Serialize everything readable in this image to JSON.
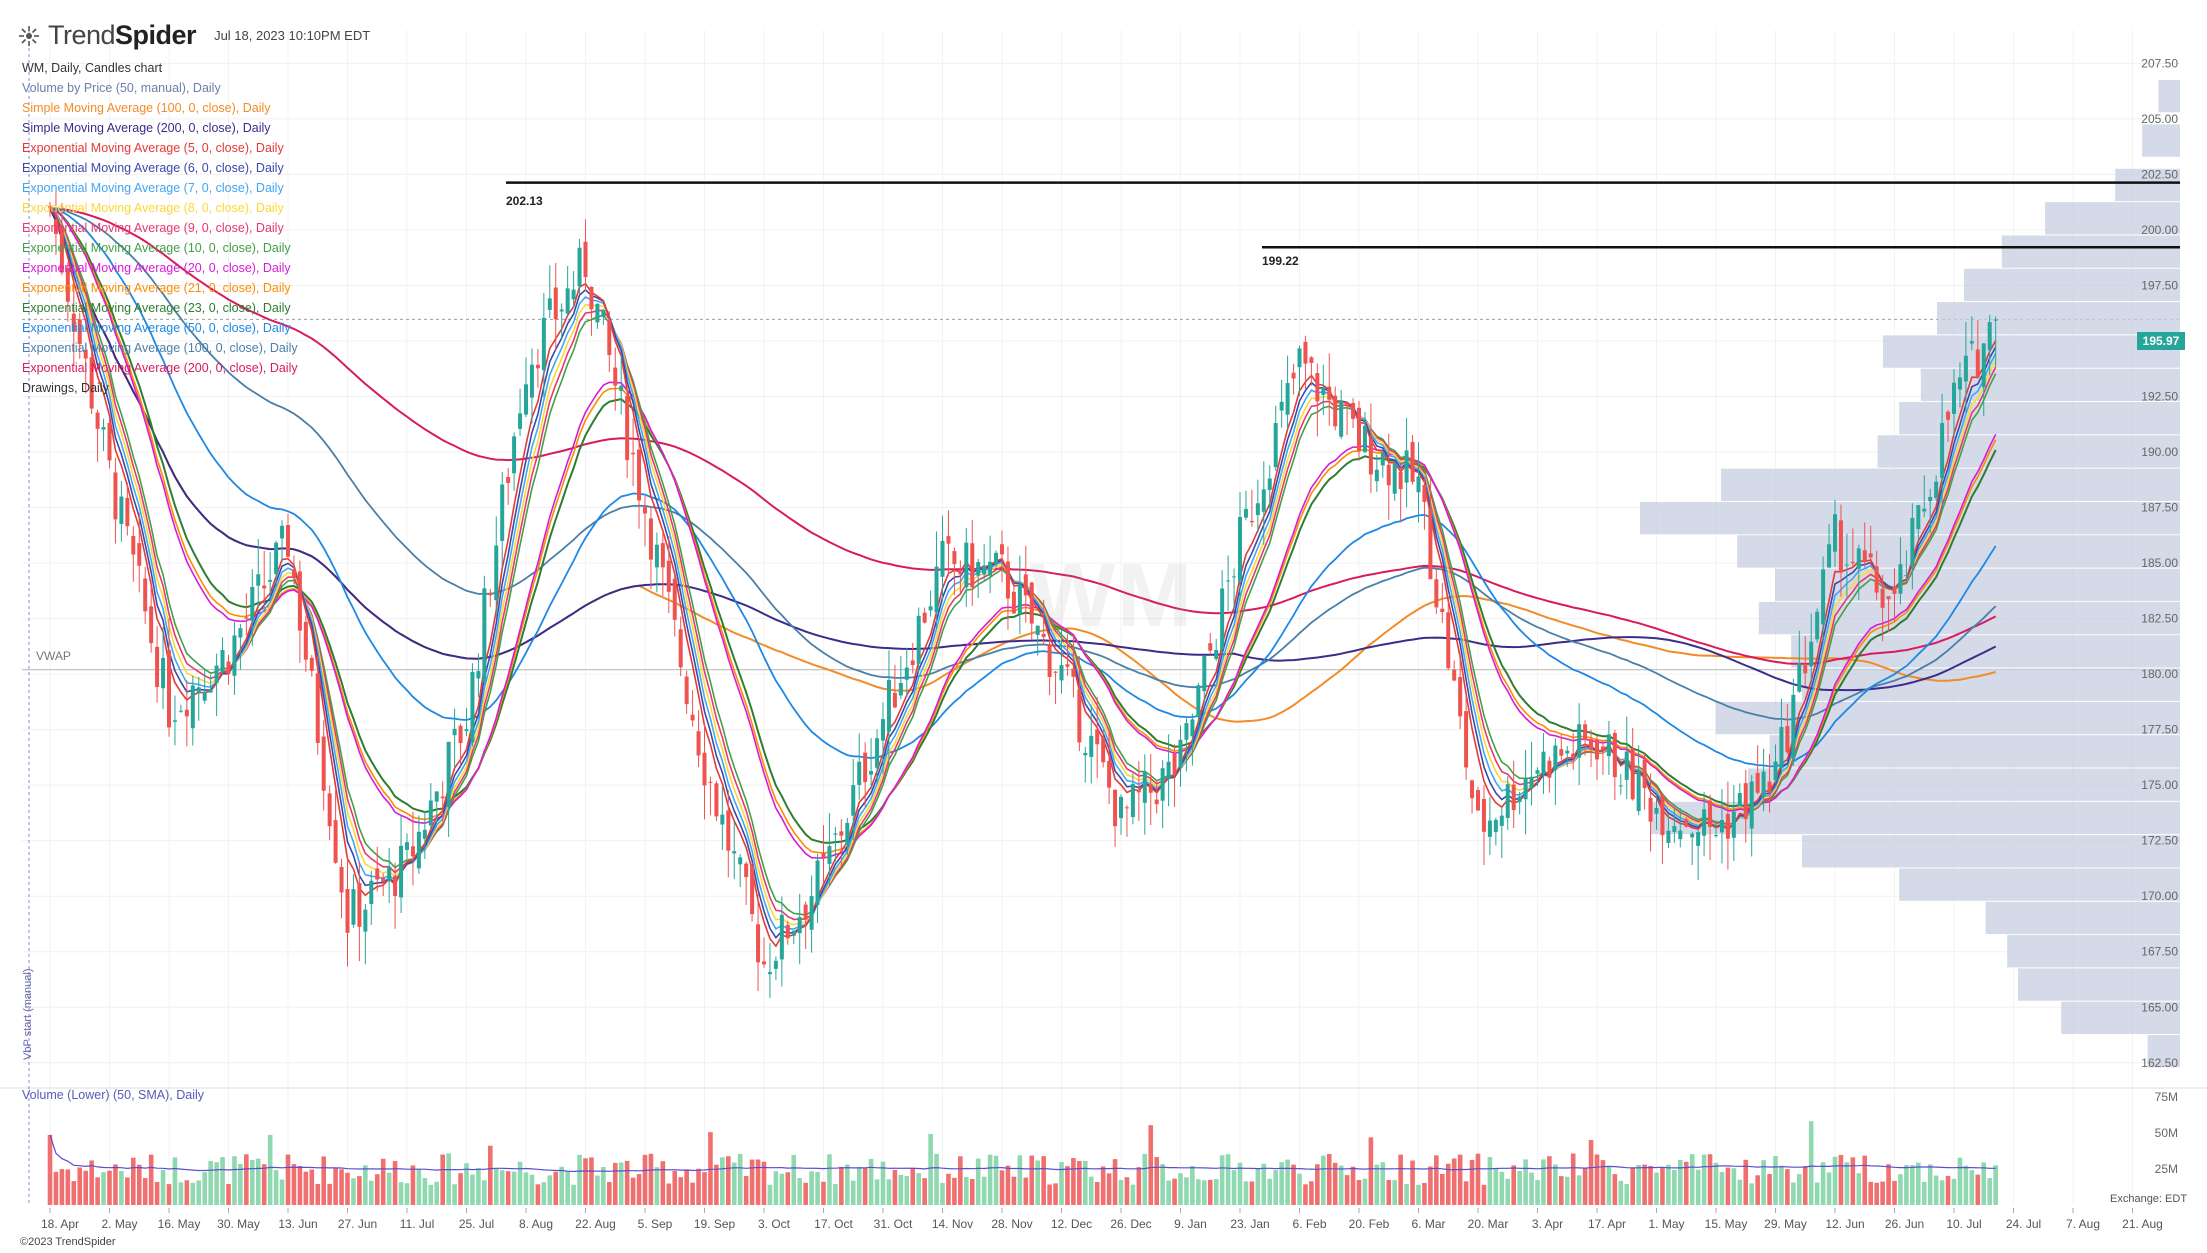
{
  "header": {
    "brand_light": "Trend",
    "brand_bold": "Spider",
    "timestamp": "Jul 18, 2023 10:10PM EDT"
  },
  "legend": {
    "items": [
      {
        "label": "WM, Daily, Candles chart",
        "color": "#333333"
      },
      {
        "label": "Volume by Price (50, manual), Daily",
        "color": "#6a7fa8"
      },
      {
        "label": "Simple Moving Average (100, 0, close), Daily",
        "color": "#f28c28"
      },
      {
        "label": "Simple Moving Average (200, 0, close), Daily",
        "color": "#3d2b8c"
      },
      {
        "label": "Exponential Moving Average (5, 0, close), Daily",
        "color": "#e53935"
      },
      {
        "label": "Exponential Moving Average (6, 0, close), Daily",
        "color": "#3949ab"
      },
      {
        "label": "Exponential Moving Average (7, 0, close), Daily",
        "color": "#42a5f5"
      },
      {
        "label": "Exponential Moving Average (8, 0, close), Daily",
        "color": "#fdd835"
      },
      {
        "label": "Exponential Moving Average (9, 0, close), Daily",
        "color": "#e53970"
      },
      {
        "label": "Exponential Moving Average (10, 0, close), Daily",
        "color": "#43a047"
      },
      {
        "label": "Exponential Moving Average (20, 0, close), Daily",
        "color": "#d81bd6"
      },
      {
        "label": "Exponential Moving Average (21, 0, close), Daily",
        "color": "#fb8c00"
      },
      {
        "label": "Exponential Moving Average (23, 0, close), Daily",
        "color": "#2e7d32"
      },
      {
        "label": "Exponential Moving Average (50, 0, close), Daily",
        "color": "#1e88e5"
      },
      {
        "label": "Exponential Moving Average (100, 0, close), Daily",
        "color": "#4a7fa8"
      },
      {
        "label": "Exponential Moving Average (200, 0, close), Daily",
        "color": "#d81b60"
      },
      {
        "label": "Drawings, Daily",
        "color": "#333333"
      }
    ]
  },
  "watermark": "WM",
  "vwap_label": "VWAP",
  "vbp_start_label": "VbP start (manual)",
  "volume_label": "Volume (Lower) (50, SMA), Daily",
  "copyright": "©2023 TrendSpider",
  "exchange_label": "Exchange: EDT",
  "last_price": "195.97",
  "colors": {
    "up": "#26a69a",
    "down": "#ef5350",
    "vol_up": "#8fd8b0",
    "vol_down": "#f07070",
    "vbp": "#c5cde0"
  },
  "chart_data": {
    "type": "candlestick",
    "title": "WM, Daily, Candles chart",
    "price_axis": {
      "ticks": [
        162.5,
        165,
        167.5,
        170,
        172.5,
        175,
        177.5,
        180,
        182.5,
        185,
        187.5,
        190,
        192.5,
        195,
        197.5,
        200,
        202.5,
        205,
        207.5
      ],
      "labels": [
        "162.50",
        "165.00",
        "167.50",
        "170.00",
        "172.50",
        "175.00",
        "177.50",
        "180.00",
        "182.50",
        "185.00",
        "187.50",
        "190.00",
        "192.50",
        "195.00",
        "197.50",
        "200.00",
        "202.50",
        "205.00",
        "207.50"
      ]
    },
    "volume_axis": {
      "ticks": [
        25,
        50,
        75
      ],
      "labels": [
        "25M",
        "50M",
        "75M"
      ],
      "unit": "M"
    },
    "x_axis_labels": [
      "18. Apr",
      "2. May",
      "16. May",
      "30. May",
      "13. Jun",
      "27. Jun",
      "11. Jul",
      "25. Jul",
      "8. Aug",
      "22. Aug",
      "5. Sep",
      "19. Sep",
      "3. Oct",
      "17. Oct",
      "31. Oct",
      "14. Nov",
      "28. Nov",
      "12. Dec",
      "26. Dec",
      "9. Jan",
      "23. Jan",
      "6. Feb",
      "20. Feb",
      "6. Mar",
      "20. Mar",
      "3. Apr",
      "17. Apr",
      "1. May",
      "15. May",
      "29. May",
      "12. Jun",
      "26. Jun",
      "10. Jul",
      "24. Jul",
      "7. Aug",
      "21. Aug"
    ],
    "key_points": [
      {
        "label": "18. Apr",
        "price": 201.0
      },
      {
        "label": "2. May",
        "price": 189.0
      },
      {
        "label": "16. May",
        "price": 178.5
      },
      {
        "label": "30. May",
        "price": 181.0
      },
      {
        "label": "13. Jun",
        "price": 186.0
      },
      {
        "label": "27. Jun",
        "price": 169.0
      },
      {
        "label": "11. Jul",
        "price": 171.5
      },
      {
        "label": "25. Jul",
        "price": 178.0
      },
      {
        "label": "8. Aug",
        "price": 194.0
      },
      {
        "label": "22. Aug",
        "price": 198.5
      },
      {
        "label": "5. Sep",
        "price": 187.5
      },
      {
        "label": "19. Sep",
        "price": 176.0
      },
      {
        "label": "3. Oct",
        "price": 167.0
      },
      {
        "label": "17. Oct",
        "price": 171.0
      },
      {
        "label": "31. Oct",
        "price": 178.0
      },
      {
        "label": "14. Nov",
        "price": 185.0
      },
      {
        "label": "28. Nov",
        "price": 184.5
      },
      {
        "label": "12. Dec",
        "price": 180.0
      },
      {
        "label": "26. Dec",
        "price": 173.5
      },
      {
        "label": "9. Jan",
        "price": 176.0
      },
      {
        "label": "23. Jan",
        "price": 186.0
      },
      {
        "label": "6. Feb",
        "price": 194.0
      },
      {
        "label": "20. Feb",
        "price": 190.5
      },
      {
        "label": "6. Mar",
        "price": 188.5
      },
      {
        "label": "20. Mar",
        "price": 173.0
      },
      {
        "label": "3. Apr",
        "price": 176.0
      },
      {
        "label": "17. Apr",
        "price": 177.0
      },
      {
        "label": "1. May",
        "price": 174.0
      },
      {
        "label": "15. May",
        "price": 173.0
      },
      {
        "label": "29. May",
        "price": 175.5
      },
      {
        "label": "12. Jun",
        "price": 186.0
      },
      {
        "label": "26. Jun",
        "price": 183.0
      },
      {
        "label": "10. Jul",
        "price": 192.5
      },
      {
        "label": "18. Jul",
        "price": 195.97
      }
    ],
    "horizontal_levels": [
      {
        "label": "202.13",
        "price": 202.13
      },
      {
        "label": "199.22",
        "price": 199.22
      }
    ],
    "vwap": 180.2,
    "last_price": 195.97,
    "volume_by_price": [
      {
        "price": 206,
        "size": 0.04
      },
      {
        "price": 204,
        "size": 0.07
      },
      {
        "price": 202,
        "size": 0.12
      },
      {
        "price": 200.5,
        "size": 0.25
      },
      {
        "price": 199,
        "size": 0.33
      },
      {
        "price": 197.5,
        "size": 0.4
      },
      {
        "price": 196,
        "size": 0.45
      },
      {
        "price": 194.5,
        "size": 0.55
      },
      {
        "price": 193,
        "size": 0.48
      },
      {
        "price": 191.5,
        "size": 0.52
      },
      {
        "price": 190,
        "size": 0.56
      },
      {
        "price": 188.5,
        "size": 0.85
      },
      {
        "price": 187,
        "size": 1.0
      },
      {
        "price": 185.5,
        "size": 0.82
      },
      {
        "price": 184,
        "size": 0.75
      },
      {
        "price": 182.5,
        "size": 0.78
      },
      {
        "price": 181,
        "size": 0.72
      },
      {
        "price": 179.5,
        "size": 0.7
      },
      {
        "price": 178,
        "size": 0.86
      },
      {
        "price": 176.5,
        "size": 0.76
      },
      {
        "price": 175,
        "size": 0.8
      },
      {
        "price": 173.5,
        "size": 0.98
      },
      {
        "price": 172,
        "size": 0.7
      },
      {
        "price": 170.5,
        "size": 0.52
      },
      {
        "price": 169,
        "size": 0.36
      },
      {
        "price": 167.5,
        "size": 0.32
      },
      {
        "price": 166,
        "size": 0.3
      },
      {
        "price": 164.5,
        "size": 0.22
      },
      {
        "price": 163,
        "size": 0.06
      }
    ]
  }
}
